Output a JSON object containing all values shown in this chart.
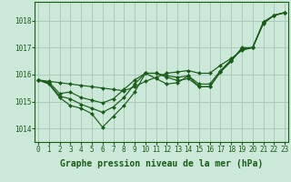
{
  "background_color": "#cce8d8",
  "grid_color": "#aaccbb",
  "line_color": "#1a5c1a",
  "xlabel": "Graphe pression niveau de la mer (hPa)",
  "xlabel_fontsize": 7.0,
  "tick_fontsize": 5.5,
  "ylim": [
    1013.5,
    1018.7
  ],
  "xlim": [
    -0.3,
    23.3
  ],
  "yticks": [
    1014,
    1015,
    1016,
    1017,
    1018
  ],
  "xticks": [
    0,
    1,
    2,
    3,
    4,
    5,
    6,
    7,
    8,
    9,
    10,
    11,
    12,
    13,
    14,
    15,
    16,
    17,
    18,
    19,
    20,
    21,
    22,
    23
  ],
  "lines": [
    [
      1015.8,
      1015.75,
      1015.7,
      1015.65,
      1015.6,
      1015.55,
      1015.5,
      1015.45,
      1015.4,
      1015.55,
      1015.75,
      1015.9,
      1016.05,
      1016.1,
      1016.15,
      1016.05,
      1016.05,
      1016.35,
      1016.6,
      1016.9,
      1017.0,
      1017.95,
      1018.2,
      1018.3
    ],
    [
      1015.8,
      1015.72,
      1015.3,
      1015.35,
      1015.15,
      1015.05,
      1014.95,
      1015.1,
      1015.45,
      1015.8,
      1016.05,
      1016.05,
      1015.95,
      1015.9,
      1015.95,
      1015.65,
      1015.65,
      1016.15,
      1016.55,
      1016.95,
      1017.0,
      1017.92,
      1018.2,
      1018.3
    ],
    [
      1015.8,
      1015.68,
      1015.2,
      1015.1,
      1014.9,
      1014.75,
      1014.6,
      1014.8,
      1015.15,
      1015.65,
      1016.05,
      1016.05,
      1015.9,
      1015.78,
      1015.85,
      1015.55,
      1015.55,
      1016.1,
      1016.5,
      1016.98,
      1017.0,
      1017.9,
      1018.2,
      1018.3
    ],
    [
      1015.8,
      1015.65,
      1015.15,
      1014.85,
      1014.75,
      1014.55,
      1014.05,
      1014.45,
      1014.85,
      1015.35,
      1016.05,
      1015.85,
      1015.65,
      1015.7,
      1015.95,
      1015.55,
      1015.55,
      1016.1,
      1016.5,
      1017.0,
      1017.0,
      1017.95,
      1018.2,
      1018.3
    ]
  ]
}
